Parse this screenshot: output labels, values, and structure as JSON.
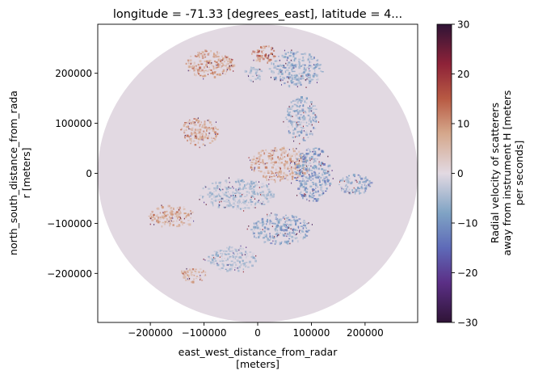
{
  "chart_data": {
    "type": "heatmap",
    "title": "longitude = -71.33 [degrees_east], latitude = 4...",
    "xlabel": [
      "east_west_distance_from_radar",
      "[meters]"
    ],
    "ylabel": [
      "north_south_distance_from_rada",
      "r [meters]"
    ],
    "xlim": [
      -298000,
      298000
    ],
    "ylim": [
      -298000,
      298000
    ],
    "x_ticks": [
      -200000,
      -100000,
      0,
      100000,
      200000
    ],
    "x_tick_labels": [
      "−200000",
      "−100000",
      "0",
      "100000",
      "200000"
    ],
    "y_ticks": [
      -200000,
      -100000,
      0,
      100000,
      200000
    ],
    "y_tick_labels": [
      "−200000",
      "−100000",
      "0",
      "100000",
      "200000"
    ],
    "radar_range_m": 298000,
    "background_value": 0,
    "colorbar": {
      "label": [
        "Radial velocity of scatterers",
        "away from instrument H [meters",
        "per seconds]"
      ],
      "vmin": -30,
      "vmax": 30,
      "ticks": [
        -30,
        -20,
        -10,
        0,
        10,
        20,
        30
      ],
      "tick_labels": [
        "−30",
        "−20",
        "−10",
        "0",
        "10",
        "20",
        "30"
      ],
      "colormap": "twilight_shifted",
      "stops": [
        {
          "value": -30,
          "color": "#2f1436"
        },
        {
          "value": -22,
          "color": "#5b2f86"
        },
        {
          "value": -15,
          "color": "#5e6ab8"
        },
        {
          "value": -8,
          "color": "#7fa3c4"
        },
        {
          "value": 0,
          "color": "#e2d9e2"
        },
        {
          "value": 8,
          "color": "#d5a88c"
        },
        {
          "value": 15,
          "color": "#b85a43"
        },
        {
          "value": 22,
          "color": "#8e2238"
        },
        {
          "value": 30,
          "color": "#2f1436"
        }
      ]
    },
    "echo_regions": [
      {
        "x": -90000,
        "y": 220000,
        "rx": 45000,
        "ry": 28000,
        "v": 9
      },
      {
        "x": 10000,
        "y": 240000,
        "rx": 22000,
        "ry": 18000,
        "v": 12
      },
      {
        "x": 70000,
        "y": 210000,
        "rx": 50000,
        "ry": 35000,
        "v": -7
      },
      {
        "x": -10000,
        "y": 200000,
        "rx": 18000,
        "ry": 14000,
        "v": -5
      },
      {
        "x": -110000,
        "y": 85000,
        "rx": 35000,
        "ry": 28000,
        "v": 9
      },
      {
        "x": 40000,
        "y": 20000,
        "rx": 55000,
        "ry": 35000,
        "v": 8
      },
      {
        "x": 100000,
        "y": 0,
        "rx": 35000,
        "ry": 55000,
        "v": -9
      },
      {
        "x": 80000,
        "y": 110000,
        "rx": 30000,
        "ry": 45000,
        "v": -7
      },
      {
        "x": -40000,
        "y": -40000,
        "rx": 70000,
        "ry": 30000,
        "v": -5
      },
      {
        "x": -160000,
        "y": -85000,
        "rx": 45000,
        "ry": 22000,
        "v": 8
      },
      {
        "x": 40000,
        "y": -110000,
        "rx": 55000,
        "ry": 30000,
        "v": -8
      },
      {
        "x": -50000,
        "y": -170000,
        "rx": 45000,
        "ry": 25000,
        "v": -5
      },
      {
        "x": -120000,
        "y": -200000,
        "rx": 25000,
        "ry": 16000,
        "v": 7
      },
      {
        "x": 180000,
        "y": -20000,
        "rx": 30000,
        "ry": 20000,
        "v": -8
      }
    ]
  }
}
